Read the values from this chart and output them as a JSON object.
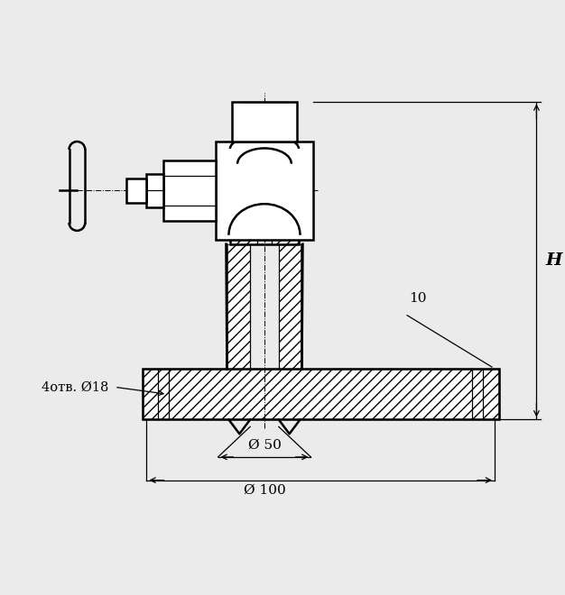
{
  "bg_color": "#ebebeb",
  "line_color": "#000000",
  "lw": 1.8,
  "lw_thin": 0.9,
  "lw_cl": 0.7,
  "annotations": {
    "dim_phi50": "Ø 50",
    "dim_phi100": "Ø 100",
    "dim_4otv": "4отв. Ø18",
    "dim_10": "10",
    "dim_H": "H"
  },
  "fig_width": 6.26,
  "fig_height": 6.6,
  "dpi": 100
}
